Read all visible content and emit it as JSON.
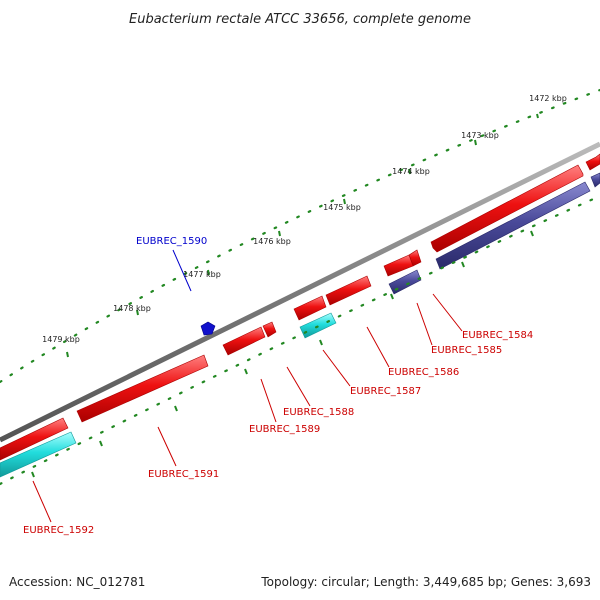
{
  "title": "Eubacterium rectale ATCC 33656, complete genome",
  "footer": {
    "accession": "Accession: NC_012781",
    "summary": "Topology: circular; Length: 3,449,685 bp; Genes: 3,693"
  },
  "colors": {
    "backbone": "#7a7a7a",
    "gene_red": "#ee1111",
    "gene_cyan": "#22dddd",
    "gene_navy": "#4a4a9a",
    "tick_green": "#228822",
    "label_red": "#cc0000",
    "label_blue": "#0000cc"
  },
  "ticks": [
    "1472 kbp",
    "1473 kbp",
    "1474 kbp",
    "1475 kbp",
    "1476 kbp",
    "1477 kbp",
    "1478 kbp",
    "1479 kbp"
  ],
  "gene_labels": [
    "EUBREC_1584",
    "EUBREC_1585",
    "EUBREC_1586",
    "EUBREC_1587",
    "EUBREC_1588",
    "EUBREC_1589",
    "EUBREC_1590",
    "EUBREC_1591",
    "EUBREC_1592"
  ]
}
